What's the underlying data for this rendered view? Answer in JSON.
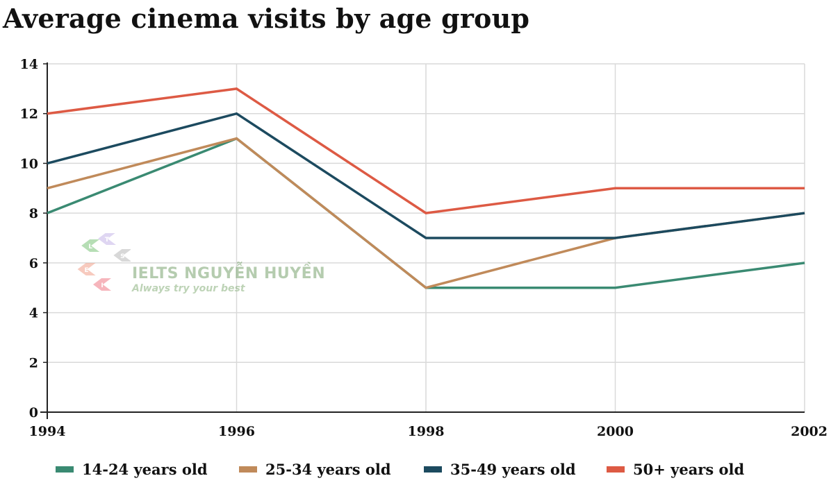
{
  "title": "Average cinema visits by age group",
  "chart_data": {
    "type": "line",
    "title": "Average cinema visits by age group",
    "xlabel": "",
    "ylabel": "",
    "x": [
      "1994",
      "1996",
      "1998",
      "2000",
      "2002"
    ],
    "ylim": [
      0,
      14
    ],
    "yticks": [
      "0",
      "2",
      "4",
      "6",
      "8",
      "10",
      "12",
      "14"
    ],
    "grid": true,
    "legend_position": "bottom",
    "series": [
      {
        "name": "14-24 years old",
        "color": "#3a8a72",
        "values": [
          8,
          11,
          5,
          5,
          6
        ]
      },
      {
        "name": "25-34 years old",
        "color": "#c08a5a",
        "values": [
          9,
          11,
          5,
          7,
          8
        ]
      },
      {
        "name": "35-49 years old",
        "color": "#1c4a5f",
        "values": [
          10,
          12,
          7,
          7,
          8
        ]
      },
      {
        "name": "50+ years old",
        "color": "#dd5a44",
        "values": [
          12,
          13,
          8,
          9,
          9
        ]
      }
    ]
  },
  "watermark": {
    "text": "IELTS NGUYỄN HUYỀN",
    "slogan": "Always try your best",
    "logo_letters": [
      "L",
      "T",
      "S",
      "E",
      "I"
    ]
  }
}
